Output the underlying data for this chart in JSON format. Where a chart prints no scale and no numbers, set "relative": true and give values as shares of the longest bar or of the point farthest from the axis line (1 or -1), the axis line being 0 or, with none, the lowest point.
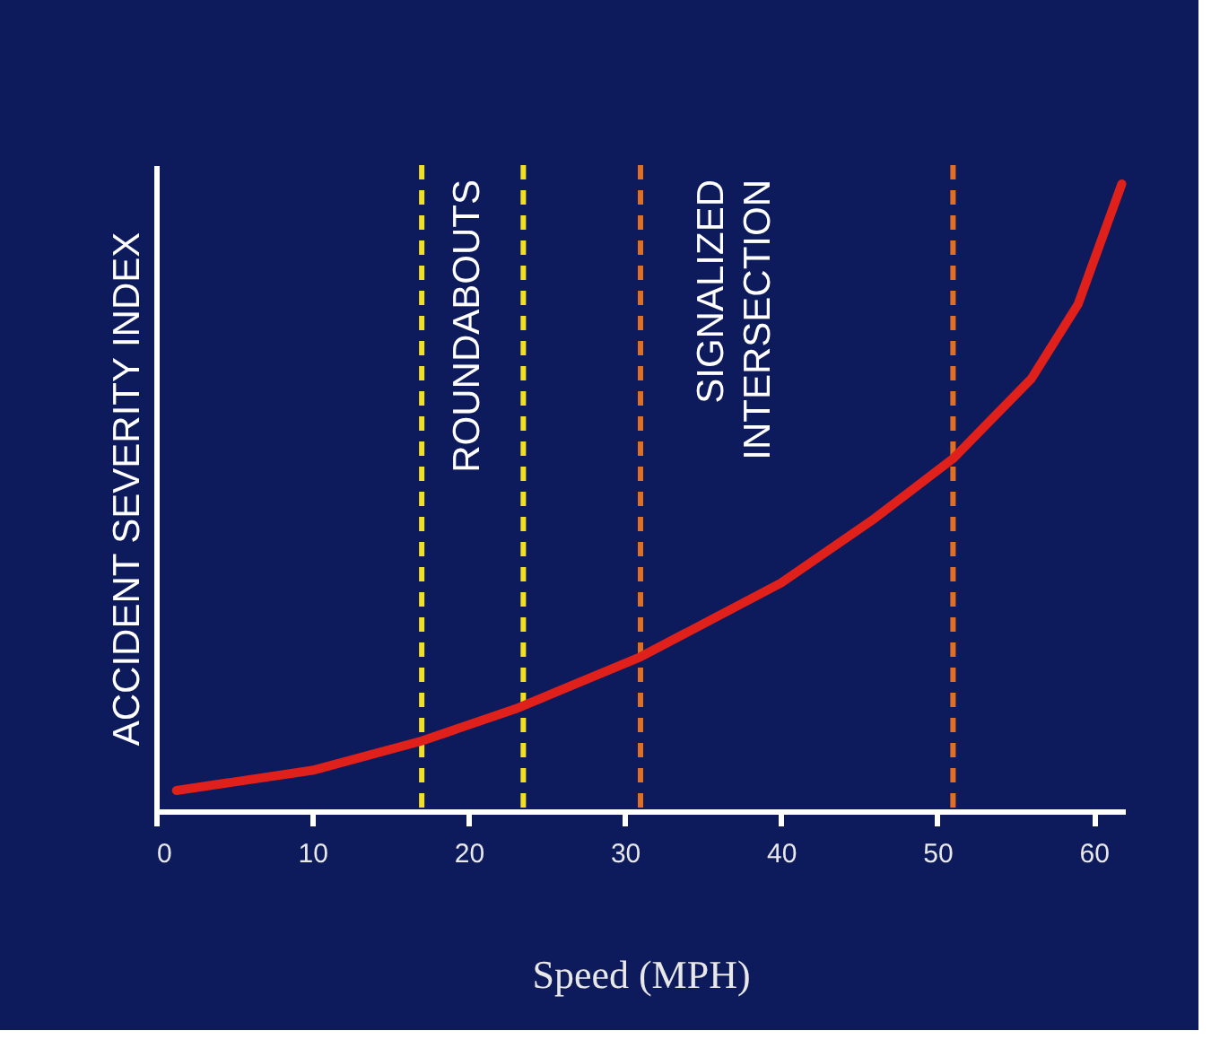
{
  "chart_data": {
    "type": "line",
    "xlabel": "Speed (MPH)",
    "ylabel": "ACCIDENT SEVERITY INDEX",
    "relative": true,
    "grid": false,
    "marker": "none",
    "line_style": "solid",
    "xlim": [
      0,
      62
    ],
    "xticks": [
      0,
      10,
      20,
      30,
      40,
      50,
      60
    ],
    "series": [
      {
        "color": "#e0201a",
        "x": [
          1.3,
          10,
          17,
          23,
          31,
          40,
          46,
          51,
          56,
          59,
          61.8
        ],
        "values": [
          0.033,
          0.065,
          0.112,
          0.163,
          0.246,
          0.364,
          0.467,
          0.562,
          0.689,
          0.808,
          1.0
        ]
      }
    ],
    "ref_lines": [
      {
        "axis": "x",
        "value": 17,
        "label": "ROUNDABOUTS",
        "color": "#f0e020",
        "line_style": "dashed"
      },
      {
        "axis": "x",
        "value": 23.5,
        "color": "#f0e020",
        "line_style": "dashed"
      },
      {
        "axis": "x",
        "value": 31,
        "label": "SIGNALIZED INTERSECTION",
        "color": "#e07020",
        "line_style": "dashed"
      },
      {
        "axis": "x",
        "value": 51,
        "color": "#e07020",
        "line_style": "dashed"
      }
    ]
  }
}
